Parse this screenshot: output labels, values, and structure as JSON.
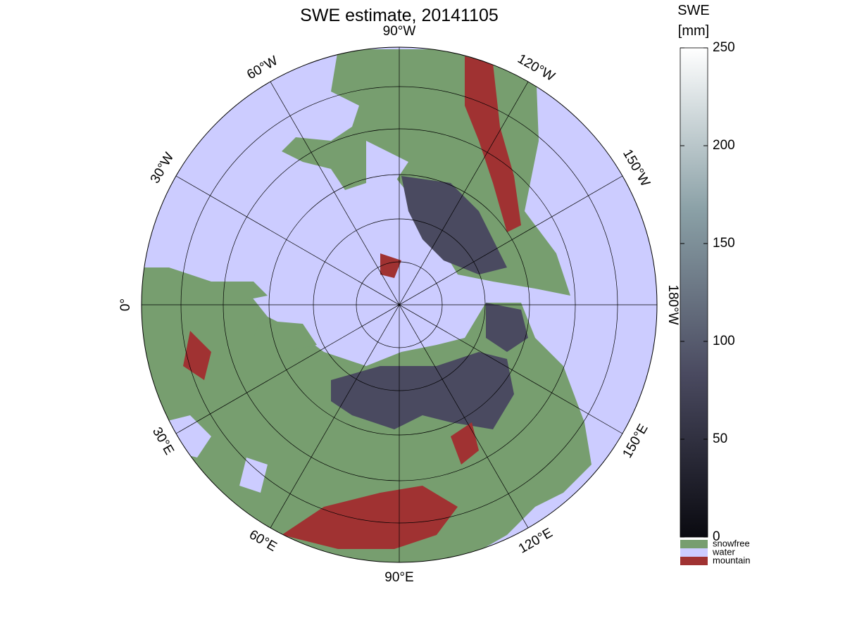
{
  "title": "SWE estimate, 20141105",
  "longitude_labels": [
    "0°",
    "30°E",
    "60°E",
    "90°E",
    "120°E",
    "150°E",
    "180°W",
    "150°W",
    "120°W",
    "90°W",
    "60°W",
    "30°W"
  ],
  "colorbar": {
    "label": [
      "SWE",
      "[mm]"
    ],
    "lim": [
      0,
      250
    ],
    "ticks": [
      0,
      50,
      100,
      150,
      200,
      250
    ],
    "colors": [
      "#0a0a10",
      "#4a4a60",
      "#8aa0a6",
      "#ffffff"
    ]
  },
  "legend": [
    {
      "name": "snowfree",
      "color": "#779e6f"
    },
    {
      "name": "water",
      "color": "#ccccff"
    },
    {
      "name": "mountain",
      "color": "#a03232"
    }
  ]
}
